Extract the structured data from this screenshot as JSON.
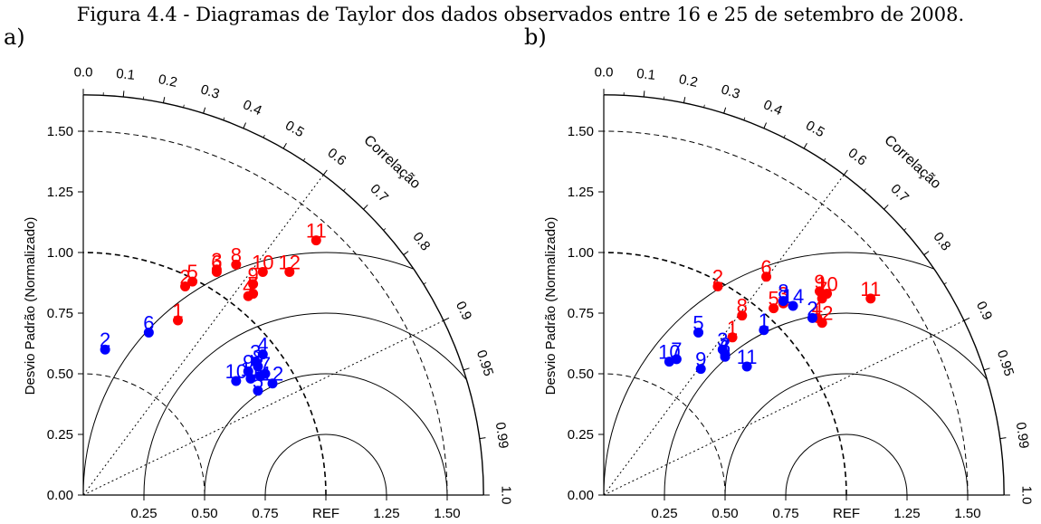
{
  "caption": "Figura 4.4 - Diagramas de Taylor dos dados observados entre 16 e 25 de setembro de 2008.",
  "chart_data": [
    {
      "type": "scatter",
      "panel_label": "a)",
      "ylabel": "Desvio Padrão (Normalizado)",
      "corr_label": "Correlação",
      "ref_label": "REF",
      "y_ticks": [
        "0.00",
        "0.25",
        "0.50",
        "0.75",
        "1.00",
        "1.25",
        "1.50"
      ],
      "x_ticks": [
        "0.25",
        "0.50",
        "0.75",
        "REF",
        "1.25",
        "1.50"
      ],
      "corr_ticks": [
        "0.0",
        "0.1",
        "0.2",
        "0.3",
        "0.4",
        "0.5",
        "0.6",
        "0.7",
        "0.8",
        "0.9",
        "0.95",
        "0.99",
        "1.0"
      ],
      "series": [
        {
          "color": "#ff0000",
          "points": [
            {
              "label": "1",
              "x": 0.39,
              "y": 0.72
            },
            {
              "label": "2",
              "x": 0.42,
              "y": 0.86
            },
            {
              "label": "5",
              "x": 0.45,
              "y": 0.88
            },
            {
              "label": "3",
              "x": 0.55,
              "y": 0.93
            },
            {
              "label": "6",
              "x": 0.55,
              "y": 0.92
            },
            {
              "label": "8",
              "x": 0.63,
              "y": 0.95
            },
            {
              "label": "9",
              "x": 0.7,
              "y": 0.87
            },
            {
              "label": "4",
              "x": 0.68,
              "y": 0.82
            },
            {
              "label": "7",
              "x": 0.7,
              "y": 0.83
            },
            {
              "label": "10",
              "x": 0.74,
              "y": 0.92
            },
            {
              "label": "12",
              "x": 0.85,
              "y": 0.92
            },
            {
              "label": "11",
              "x": 0.96,
              "y": 1.05
            }
          ]
        },
        {
          "color": "#0000ff",
          "points": [
            {
              "label": "2",
              "x": 0.09,
              "y": 0.6
            },
            {
              "label": "6",
              "x": 0.27,
              "y": 0.67
            },
            {
              "label": "10",
              "x": 0.63,
              "y": 0.47
            },
            {
              "label": "9",
              "x": 0.68,
              "y": 0.51
            },
            {
              "label": "11",
              "x": 0.69,
              "y": 0.48
            },
            {
              "label": "3",
              "x": 0.71,
              "y": 0.55
            },
            {
              "label": "8",
              "x": 0.72,
              "y": 0.53
            },
            {
              "label": "4",
              "x": 0.74,
              "y": 0.58
            },
            {
              "label": "1",
              "x": 0.73,
              "y": 0.49
            },
            {
              "label": "7",
              "x": 0.75,
              "y": 0.5
            },
            {
              "label": "5",
              "x": 0.72,
              "y": 0.43
            },
            {
              "label": "12",
              "x": 0.78,
              "y": 0.46
            }
          ]
        }
      ]
    },
    {
      "type": "scatter",
      "panel_label": "b)",
      "ylabel": "Desvio Padrão (Normalizado)",
      "corr_label": "Correlação",
      "ref_label": "REF",
      "y_ticks": [
        "0.00",
        "0.25",
        "0.50",
        "0.75",
        "1.00",
        "1.25",
        "1.50"
      ],
      "x_ticks": [
        "0.25",
        "0.50",
        "0.75",
        "REF",
        "1.25",
        "1.50"
      ],
      "corr_ticks": [
        "0.0",
        "0.1",
        "0.2",
        "0.3",
        "0.4",
        "0.5",
        "0.6",
        "0.7",
        "0.8",
        "0.9",
        "0.95",
        "0.99",
        "1.0"
      ],
      "series": [
        {
          "color": "#ff0000",
          "points": [
            {
              "label": "2",
              "x": 0.47,
              "y": 0.86
            },
            {
              "label": "6",
              "x": 0.67,
              "y": 0.9
            },
            {
              "label": "1",
              "x": 0.53,
              "y": 0.65
            },
            {
              "label": "8",
              "x": 0.57,
              "y": 0.74
            },
            {
              "label": "5",
              "x": 0.7,
              "y": 0.77
            },
            {
              "label": "3",
              "x": 0.74,
              "y": 0.79
            },
            {
              "label": "7",
              "x": 0.9,
              "y": 0.81
            },
            {
              "label": "9",
              "x": 0.89,
              "y": 0.84
            },
            {
              "label": "10",
              "x": 0.92,
              "y": 0.83
            },
            {
              "label": "4",
              "x": 0.88,
              "y": 0.73
            },
            {
              "label": "12",
              "x": 0.9,
              "y": 0.71
            },
            {
              "label": "11",
              "x": 1.1,
              "y": 0.81
            }
          ]
        },
        {
          "color": "#0000ff",
          "points": [
            {
              "label": "10",
              "x": 0.27,
              "y": 0.55
            },
            {
              "label": "7",
              "x": 0.3,
              "y": 0.56
            },
            {
              "label": "5",
              "x": 0.39,
              "y": 0.67
            },
            {
              "label": "9",
              "x": 0.4,
              "y": 0.52
            },
            {
              "label": "3",
              "x": 0.49,
              "y": 0.6
            },
            {
              "label": "2",
              "x": 0.5,
              "y": 0.58
            },
            {
              "label": "6",
              "x": 0.5,
              "y": 0.57
            },
            {
              "label": "11",
              "x": 0.59,
              "y": 0.53
            },
            {
              "label": "8",
              "x": 0.74,
              "y": 0.8
            },
            {
              "label": "1",
              "x": 0.66,
              "y": 0.68
            },
            {
              "label": "14",
              "x": 0.78,
              "y": 0.78
            },
            {
              "label": "2",
              "x": 0.86,
              "y": 0.73
            }
          ]
        }
      ]
    }
  ]
}
